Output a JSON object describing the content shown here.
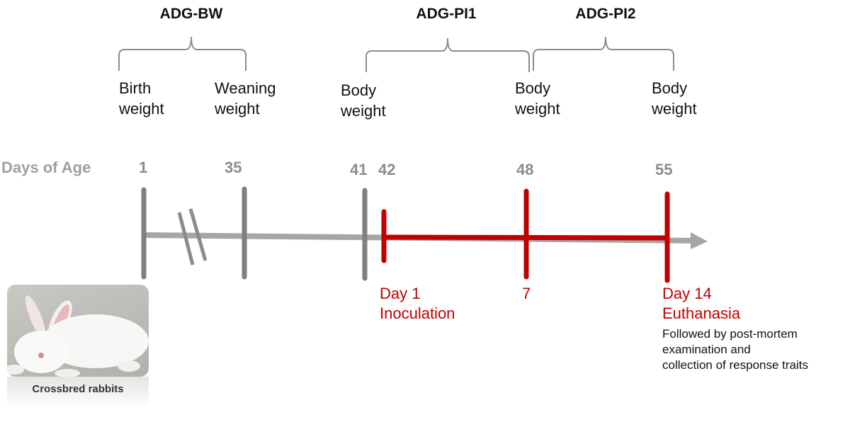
{
  "brackets": [
    {
      "label": "ADG-BW"
    },
    {
      "label": "ADG-PI1"
    },
    {
      "label": "ADG-PI2"
    }
  ],
  "weights": [
    {
      "line1": "Birth",
      "line2": "weight"
    },
    {
      "line1": "Weaning",
      "line2": "weight"
    },
    {
      "line1": "Body",
      "line2": "weight"
    },
    {
      "line1": "Body",
      "line2": "weight"
    },
    {
      "line1": "Body",
      "line2": "weight"
    }
  ],
  "axis": {
    "label": "Days of Age",
    "days": [
      "1",
      "35",
      "41",
      "42",
      "48",
      "55"
    ]
  },
  "events": [
    {
      "line1": "Day 1",
      "line2": "Inoculation"
    },
    {
      "line1": "7"
    },
    {
      "line1": "Day 14",
      "line2": "Euthanasia"
    }
  ],
  "note": [
    "Followed by post-mortem",
    "examination and",
    "collection of response traits"
  ],
  "photo": {
    "caption": "Crossbred rabbits"
  },
  "colors": {
    "accent": "#c00000",
    "axis": "#a6a6a6",
    "tick": "#808080",
    "day_label": "#8c8c8c"
  }
}
